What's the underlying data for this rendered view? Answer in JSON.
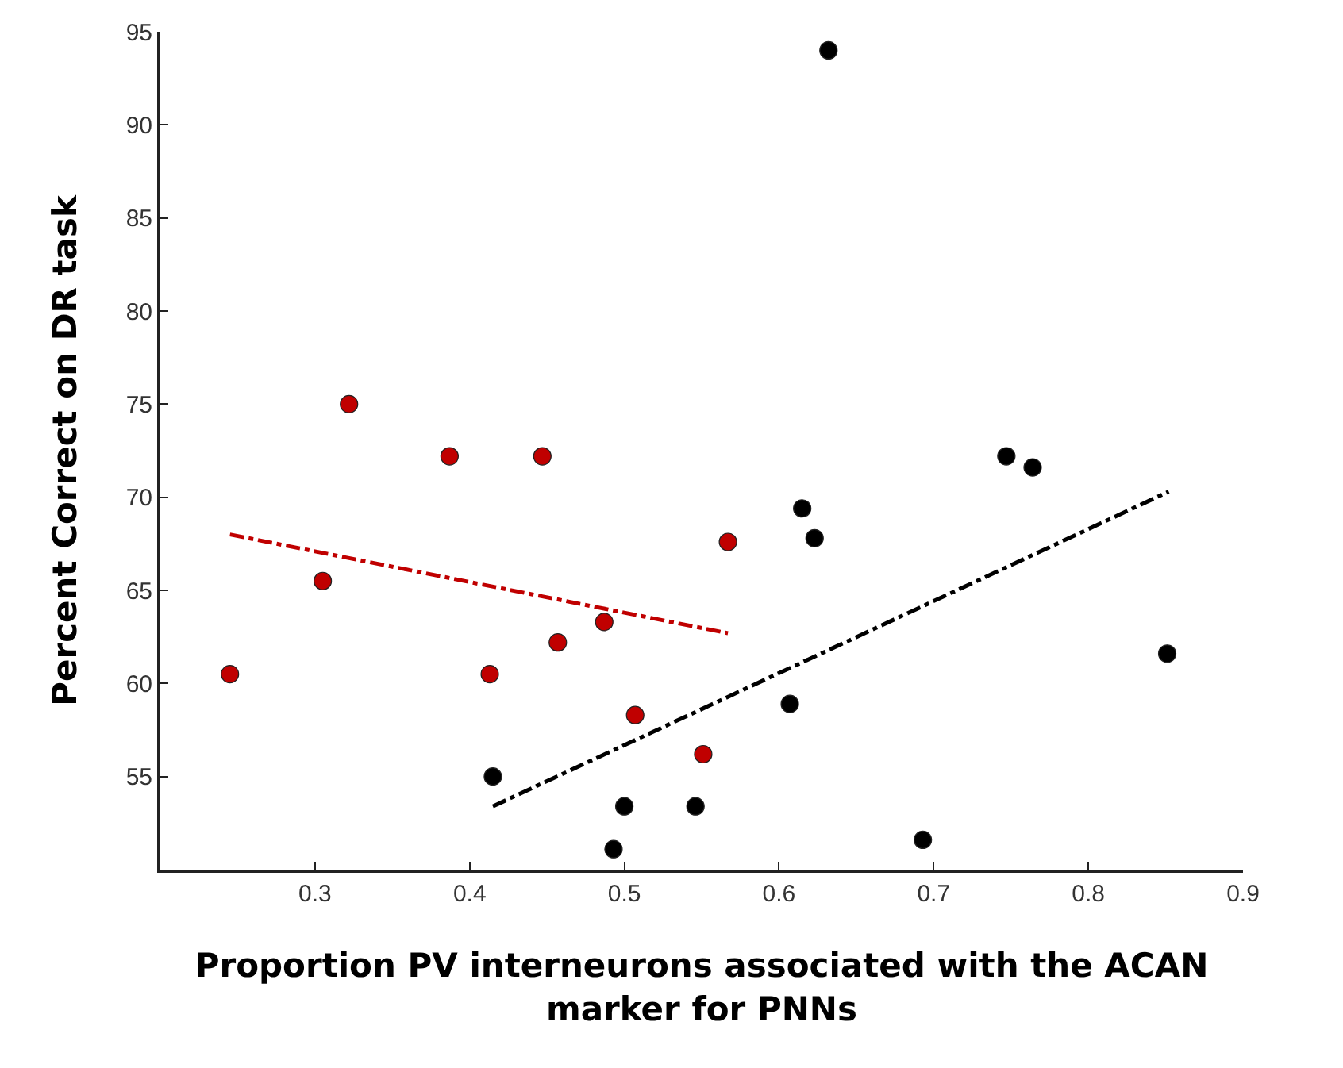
{
  "chart_data": {
    "type": "scatter",
    "xlabel": "Proportion PV interneurons associated with the ACAN marker for PNNs",
    "ylabel": "Percent Correct on DR task",
    "xlim": [
      0.2,
      0.9
    ],
    "xticks": [
      0.3,
      0.4,
      0.5,
      0.6,
      0.7,
      0.8,
      0.9
    ],
    "ylim": [
      50,
      95
    ],
    "yticks": [
      55,
      60,
      65,
      70,
      75,
      80,
      85,
      90,
      95
    ],
    "marker": "circle",
    "series": [
      {
        "color": "#c00000",
        "x": [
          0.245,
          0.305,
          0.322,
          0.387,
          0.447,
          0.413,
          0.457,
          0.487,
          0.507,
          0.551,
          0.567
        ],
        "values": [
          60.5,
          65.5,
          75,
          72.2,
          72.2,
          60.5,
          62.2,
          63.3,
          58.3,
          56.2,
          67.6
        ]
      },
      {
        "color": "#000000",
        "x": [
          0.415,
          0.5,
          0.493,
          0.546,
          0.607,
          0.615,
          0.623,
          0.632,
          0.693,
          0.747,
          0.764,
          0.851
        ],
        "values": [
          55,
          53.4,
          51.1,
          53.4,
          58.9,
          69.4,
          67.8,
          94,
          51.6,
          72.2,
          71.6,
          61.6
        ]
      },
      {
        "type": "line",
        "color": "#c00000",
        "line_style": "dashdot",
        "marker": "none",
        "x": [
          0.245,
          0.567
        ],
        "values": [
          68.0,
          62.7
        ]
      },
      {
        "type": "line",
        "color": "#000000",
        "line_style": "dashdot",
        "marker": "none",
        "x": [
          0.415,
          0.852
        ],
        "values": [
          53.4,
          70.3
        ]
      }
    ]
  }
}
